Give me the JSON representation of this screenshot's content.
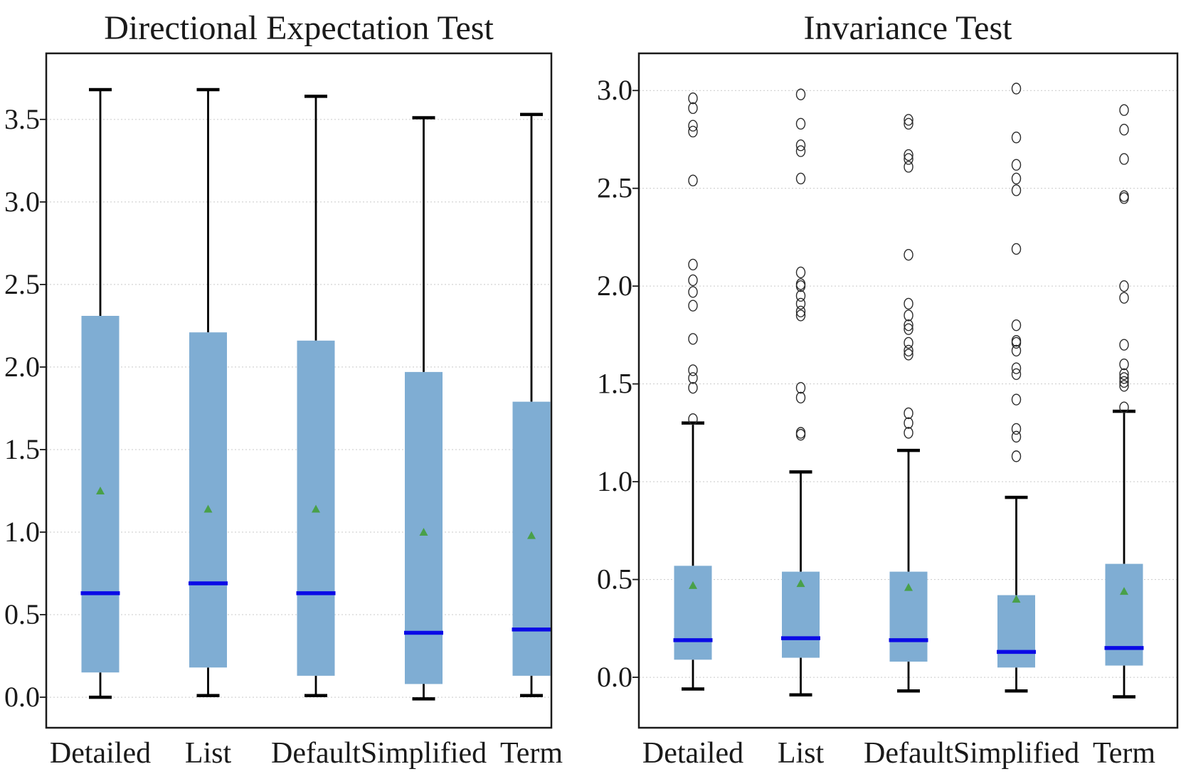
{
  "figure": {
    "background": "#ffffff"
  },
  "styles": {
    "box_fill": "#7FADD3",
    "median_color": "#0A0AE6",
    "mean_color": "#49A049",
    "whisker_color": "#000000",
    "frame_color": "#1a1a1a",
    "grid_color": "#c9c9c9",
    "outlier_stroke": "#2b2b2b",
    "text_color": "#1a1a1a"
  },
  "chart_data": [
    {
      "type": "boxplot",
      "title": "Directional Expectation Test",
      "categories": [
        "Detailed",
        "List",
        "Default",
        "Simplified",
        "Term"
      ],
      "ylim": [
        -0.185,
        3.9
      ],
      "yticks": [
        0.0,
        0.5,
        1.0,
        1.5,
        2.0,
        2.5,
        3.0,
        3.5
      ],
      "grid": "horizontal-dotted",
      "legend": "none",
      "series": [
        {
          "category": "Detailed",
          "whisker_low": 0.0,
          "q1": 0.15,
          "median": 0.63,
          "q3": 2.31,
          "whisker_high": 3.68,
          "mean": 1.25,
          "outliers": []
        },
        {
          "category": "List",
          "whisker_low": 0.01,
          "q1": 0.18,
          "median": 0.69,
          "q3": 2.21,
          "whisker_high": 3.68,
          "mean": 1.14,
          "outliers": []
        },
        {
          "category": "Default",
          "whisker_low": 0.01,
          "q1": 0.13,
          "median": 0.63,
          "q3": 2.16,
          "whisker_high": 3.64,
          "mean": 1.14,
          "outliers": []
        },
        {
          "category": "Simplified",
          "whisker_low": -0.01,
          "q1": 0.08,
          "median": 0.39,
          "q3": 1.97,
          "whisker_high": 3.51,
          "mean": 1.0,
          "outliers": []
        },
        {
          "category": "Term",
          "whisker_low": 0.01,
          "q1": 0.13,
          "median": 0.41,
          "q3": 1.79,
          "whisker_high": 3.53,
          "mean": 0.98,
          "outliers": []
        }
      ]
    },
    {
      "type": "boxplot",
      "title": "Invariance Test",
      "categories": [
        "Detailed",
        "List",
        "Default",
        "Simplified",
        "Term"
      ],
      "ylim": [
        -0.258,
        3.19
      ],
      "yticks": [
        0.0,
        0.5,
        1.0,
        1.5,
        2.0,
        2.5,
        3.0
      ],
      "grid": "horizontal-dotted",
      "legend": "none",
      "series": [
        {
          "category": "Detailed",
          "whisker_low": -0.06,
          "q1": 0.09,
          "median": 0.19,
          "q3": 0.57,
          "whisker_high": 1.3,
          "mean": 0.47,
          "outliers": [
            1.32,
            1.48,
            1.53,
            1.57,
            1.73,
            1.9,
            1.97,
            2.03,
            2.11,
            2.54,
            2.79,
            2.82,
            2.91,
            2.96
          ]
        },
        {
          "category": "List",
          "whisker_low": -0.09,
          "q1": 0.1,
          "median": 0.2,
          "q3": 0.54,
          "whisker_high": 1.05,
          "mean": 0.48,
          "outliers": [
            1.24,
            1.25,
            1.43,
            1.48,
            1.85,
            1.87,
            1.91,
            1.95,
            2.0,
            2.01,
            2.07,
            2.55,
            2.69,
            2.72,
            2.83,
            2.98
          ]
        },
        {
          "category": "Default",
          "whisker_low": -0.07,
          "q1": 0.08,
          "median": 0.19,
          "q3": 0.54,
          "whisker_high": 1.16,
          "mean": 0.46,
          "outliers": [
            1.25,
            1.3,
            1.35,
            1.65,
            1.67,
            1.71,
            1.78,
            1.8,
            1.85,
            1.91,
            2.16,
            2.61,
            2.65,
            2.67,
            2.83,
            2.85
          ]
        },
        {
          "category": "Simplified",
          "whisker_low": -0.07,
          "q1": 0.05,
          "median": 0.13,
          "q3": 0.42,
          "whisker_high": 0.92,
          "mean": 0.4,
          "outliers": [
            1.13,
            1.23,
            1.27,
            1.42,
            1.55,
            1.58,
            1.67,
            1.71,
            1.72,
            1.8,
            2.19,
            2.49,
            2.55,
            2.62,
            2.76,
            3.01
          ]
        },
        {
          "category": "Term",
          "whisker_low": -0.1,
          "q1": 0.06,
          "median": 0.15,
          "q3": 0.58,
          "whisker_high": 1.36,
          "mean": 0.44,
          "outliers": [
            1.38,
            1.49,
            1.51,
            1.53,
            1.55,
            1.6,
            1.7,
            1.94,
            2.0,
            2.45,
            2.46,
            2.65,
            2.8,
            2.9
          ]
        }
      ]
    }
  ]
}
